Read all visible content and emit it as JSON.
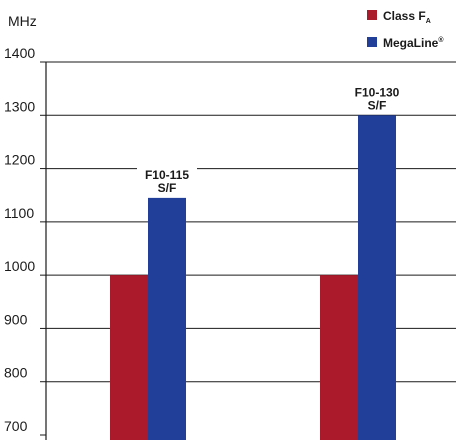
{
  "chart_data": {
    "type": "bar",
    "unit_label": "MHz",
    "categories": [
      "F10-115 S/F",
      "F10-130 S/F"
    ],
    "category_labels": [
      [
        "F10-115",
        "S/F"
      ],
      [
        "F10-130",
        "S/F"
      ]
    ],
    "series": [
      {
        "name": "Class F",
        "name_sub": "A",
        "color": "#ab1a2a",
        "values": [
          1000,
          1000
        ]
      },
      {
        "name": "MegaLine",
        "name_sup": "®",
        "color": "#213f99",
        "values": [
          1145,
          1300
        ]
      }
    ],
    "ylim": [
      700,
      1400
    ],
    "yticks": [
      700,
      800,
      900,
      1000,
      1100,
      1200,
      1300,
      1400
    ],
    "grid": true,
    "legend_position": "top-right"
  }
}
